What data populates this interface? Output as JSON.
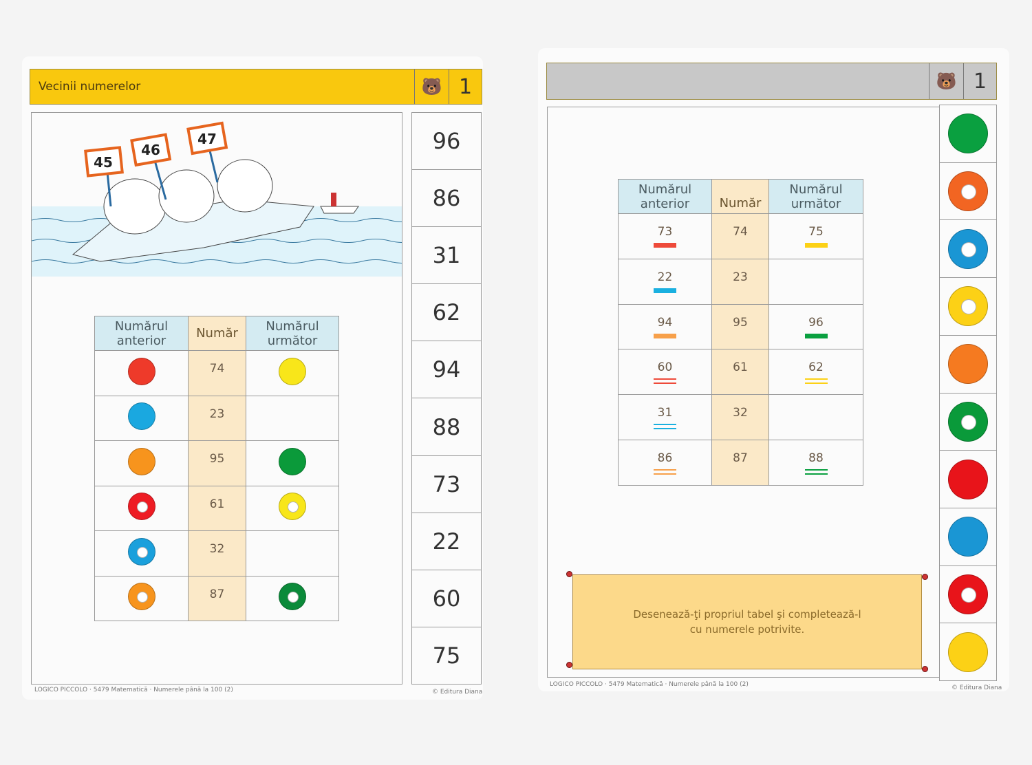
{
  "left_card": {
    "header": {
      "title": "Vecinii numerelor",
      "number": "1",
      "icon": "bear-icon",
      "color": "#f9c80e"
    },
    "illustration": {
      "signs": [
        "45",
        "46",
        "47"
      ]
    },
    "table": {
      "headers": [
        "Numărul anterior",
        "Număr",
        "Numărul următor"
      ],
      "rows": [
        {
          "prev": {
            "color": "#ee3a2a",
            "style": "solid"
          },
          "number": "74",
          "next": {
            "color": "#f8e61a",
            "style": "solid"
          }
        },
        {
          "prev": {
            "color": "#1aa8e0",
            "style": "solid"
          },
          "number": "23",
          "next": null
        },
        {
          "prev": {
            "color": "#f7941d",
            "style": "solid"
          },
          "number": "95",
          "next": {
            "color": "#0b9a3a",
            "style": "solid"
          }
        },
        {
          "prev": {
            "color": "#ee1c24",
            "style": "ring"
          },
          "number": "61",
          "next": {
            "color": "#f8e61a",
            "style": "ring"
          }
        },
        {
          "prev": {
            "color": "#1aa0dc",
            "style": "ring"
          },
          "number": "32",
          "next": null
        },
        {
          "prev": {
            "color": "#f7941d",
            "style": "ring"
          },
          "number": "87",
          "next": {
            "color": "#0b8a3a",
            "style": "ring"
          }
        }
      ]
    },
    "answer_column": [
      "96",
      "86",
      "31",
      "62",
      "94",
      "88",
      "73",
      "22",
      "60",
      "75"
    ],
    "footer_left": "LOGICO PICCOLO · 5479 Matematică · Numerele până la 100 (2)",
    "footer_right": "© Editura Diana"
  },
  "right_card": {
    "header": {
      "title": "",
      "number": "1",
      "icon": "bear-icon",
      "color": "#c8c8c8"
    },
    "table": {
      "headers": [
        "Numărul anterior",
        "Număr",
        "Numărul următor"
      ],
      "rows": [
        {
          "prev": "73",
          "prev_mark": {
            "color": "#ee4a3a",
            "style": "single"
          },
          "number": "74",
          "next": "75",
          "next_mark": {
            "color": "#fcd116",
            "style": "single"
          }
        },
        {
          "prev": "22",
          "prev_mark": {
            "color": "#1ab0e0",
            "style": "single"
          },
          "number": "23",
          "next": "",
          "next_mark": null
        },
        {
          "prev": "94",
          "prev_mark": {
            "color": "#f7a04a",
            "style": "single"
          },
          "number": "95",
          "next": "96",
          "next_mark": {
            "color": "#0aa040",
            "style": "single"
          }
        },
        {
          "prev": "60",
          "prev_mark": {
            "color": "#ee4a3a",
            "style": "double"
          },
          "number": "61",
          "next": "62",
          "next_mark": {
            "color": "#fcd116",
            "style": "double"
          }
        },
        {
          "prev": "31",
          "prev_mark": {
            "color": "#1ab0e0",
            "style": "double"
          },
          "number": "32",
          "next": "",
          "next_mark": null
        },
        {
          "prev": "86",
          "prev_mark": {
            "color": "#f7a04a",
            "style": "double"
          },
          "number": "87",
          "next": "88",
          "next_mark": {
            "color": "#0aa040",
            "style": "double"
          }
        }
      ]
    },
    "note": {
      "line1": "Desenează-ţi propriul tabel şi completează-l",
      "line2": "cu numerele potrivite."
    },
    "answer_column": [
      {
        "color": "#0aa040",
        "style": "solid"
      },
      {
        "color": "#f26522",
        "style": "ring"
      },
      {
        "color": "#1a96d4",
        "style": "ring"
      },
      {
        "color": "#fcd116",
        "style": "ring"
      },
      {
        "color": "#f57a20",
        "style": "solid"
      },
      {
        "color": "#0a9a3a",
        "style": "ring"
      },
      {
        "color": "#e8141a",
        "style": "solid"
      },
      {
        "color": "#1a96d4",
        "style": "solid"
      },
      {
        "color": "#e8141a",
        "style": "ring"
      },
      {
        "color": "#fcd116",
        "style": "solid"
      }
    ],
    "footer_left": "LOGICO PICCOLO · 5479 Matematică · Numerele până la 100 (2)",
    "footer_right": "© Editura Diana"
  }
}
